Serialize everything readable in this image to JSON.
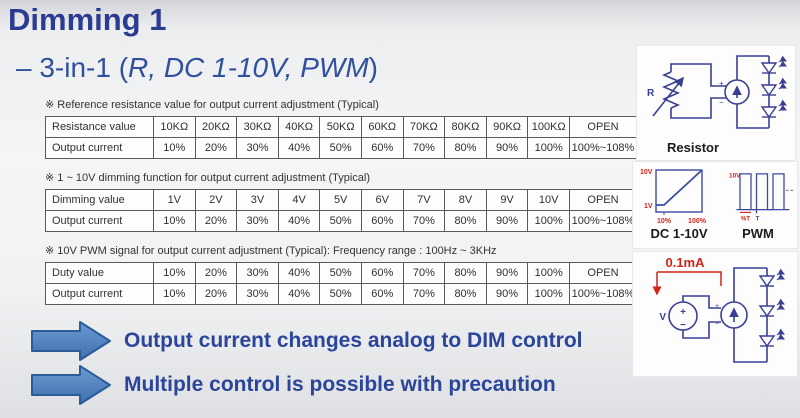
{
  "title": "Dimming 1",
  "subtitle": {
    "prefix": "– 3-in-1 (",
    "italic": "R, DC 1-10V, PWM",
    "suffix": ")"
  },
  "tables": [
    {
      "note": "※ Reference resistance value for output current adjustment (Typical)",
      "rows": [
        {
          "label": "Resistance value",
          "cells": [
            "10KΩ",
            "20KΩ",
            "30KΩ",
            "40KΩ",
            "50KΩ",
            "60KΩ",
            "70KΩ",
            "80KΩ",
            "90KΩ",
            "100KΩ",
            "OPEN"
          ]
        },
        {
          "label": "Output current",
          "cells": [
            "10%",
            "20%",
            "30%",
            "40%",
            "50%",
            "60%",
            "70%",
            "80%",
            "90%",
            "100%",
            "100%~108%"
          ]
        }
      ]
    },
    {
      "note": "※ 1 ~ 10V dimming function for output current adjustment (Typical)",
      "rows": [
        {
          "label": "Dimming value",
          "cells": [
            "1V",
            "2V",
            "3V",
            "4V",
            "5V",
            "6V",
            "7V",
            "8V",
            "9V",
            "10V",
            "OPEN"
          ]
        },
        {
          "label": "Output current",
          "cells": [
            "10%",
            "20%",
            "30%",
            "40%",
            "50%",
            "60%",
            "70%",
            "80%",
            "90%",
            "100%",
            "100%~108%"
          ]
        }
      ]
    },
    {
      "note": "※ 10V PWM signal for output current adjustment (Typical): Frequency range : 100Hz ~ 3KHz",
      "rows": [
        {
          "label": "Duty value",
          "cells": [
            "10%",
            "20%",
            "30%",
            "40%",
            "50%",
            "60%",
            "70%",
            "80%",
            "90%",
            "100%",
            "OPEN"
          ]
        },
        {
          "label": "Output current",
          "cells": [
            "10%",
            "20%",
            "30%",
            "40%",
            "50%",
            "60%",
            "70%",
            "80%",
            "90%",
            "100%",
            "100%~108%"
          ]
        }
      ]
    }
  ],
  "diagrams": {
    "resistor": {
      "label": "Resistor",
      "r_label": "R",
      "plus": "+",
      "minus": "−"
    },
    "dc_graph": {
      "label": "DC 1-10V",
      "y_max": "10V",
      "y_min": "1V",
      "x_min": "10%",
      "x_max": "100%"
    },
    "pwm_graph": {
      "label": "PWM",
      "y_max": "10V",
      "duty_label": "%T",
      "period_label": "T"
    },
    "analog_circuit": {
      "current_label": "0.1mA",
      "source_label": "V",
      "plus": "+",
      "minus": "−"
    }
  },
  "bullets": [
    "Output current changes analog to DIM control",
    "Multiple control is possible with precaution"
  ],
  "colors": {
    "title_blue": "#2c3b92",
    "subtitle_blue": "#30509d",
    "bullet_text_blue": "#2a459a",
    "arrow_fill_blue": "#4a7fbe",
    "schematic_navy": "#3a3f93",
    "accent_red": "#cf2418",
    "table_border_gray": "#5a5a5a"
  }
}
